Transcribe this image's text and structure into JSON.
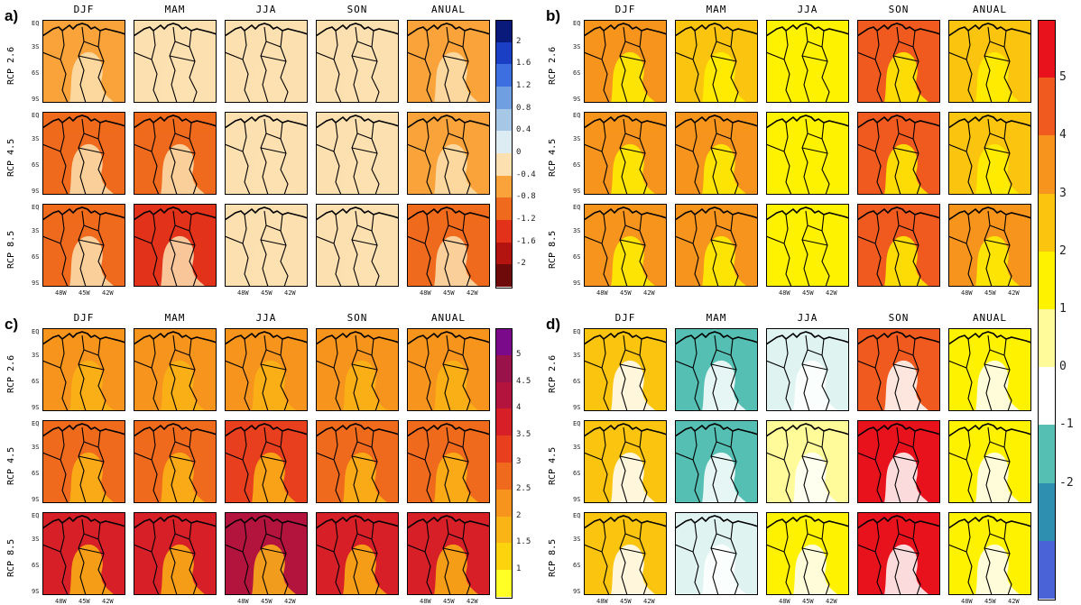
{
  "panels": [
    {
      "letter": "a)",
      "id": "a"
    },
    {
      "letter": "b)",
      "id": "b"
    },
    {
      "letter": "c)",
      "id": "c"
    },
    {
      "letter": "d)",
      "id": "d"
    }
  ],
  "seasons": [
    "DJF",
    "MAM",
    "JJA",
    "SON",
    "ANUAL"
  ],
  "scenarios": [
    "RCP 2.6",
    "RCP 4.5",
    "RCP 8.5"
  ],
  "y_ticks": [
    "EQ",
    "3S",
    "6S",
    "9S"
  ],
  "x_ticks": [
    "48W",
    "45W",
    "42W"
  ],
  "colorbars": {
    "a": {
      "labels": [
        "2",
        "1.6",
        "1.2",
        "0.8",
        "0.4",
        "0",
        "-0.4",
        "-0.8",
        "-1.2",
        "-1.6",
        "-2"
      ],
      "colors": [
        "#0a1a7a",
        "#1b3fc4",
        "#3e6fe0",
        "#6f9fe0",
        "#a7c7e6",
        "#dcecf2",
        "#fde0b0",
        "#f9a33a",
        "#f06a1d",
        "#e2321a",
        "#b3140f",
        "#6e0a0a"
      ]
    },
    "b": {
      "labels": [
        "5",
        "4",
        "3",
        "2",
        "1",
        "0",
        "-1",
        "-2"
      ],
      "colors": [
        "#e8121c",
        "#f05a1e",
        "#f7941d",
        "#fbc40f",
        "#fff200",
        "#fffb9a",
        "#ffffff",
        "#56bfb3",
        "#2e8fb0",
        "#4a63d6"
      ]
    },
    "c": {
      "labels": [
        "5",
        "4.5",
        "4",
        "3.5",
        "3",
        "2.5",
        "2",
        "1.5",
        "1"
      ],
      "colors": [
        "#7a0a8a",
        "#99124a",
        "#b3143d",
        "#d61f27",
        "#e8401e",
        "#f06a1d",
        "#f7941d",
        "#fbb416",
        "#fdd30e",
        "#ffff26"
      ]
    }
  },
  "chart_data": [
    {
      "type": "heatmap",
      "panel": "a",
      "rows": [
        "RCP 2.6",
        "RCP 4.5",
        "RCP 8.5"
      ],
      "columns": [
        "DJF",
        "MAM",
        "JJA",
        "SON",
        "ANUAL"
      ],
      "colorbar_range": [
        -2,
        2
      ]
    },
    {
      "type": "heatmap",
      "panel": "b",
      "rows": [
        "RCP 2.6",
        "RCP 4.5",
        "RCP 8.5"
      ],
      "columns": [
        "DJF",
        "MAM",
        "JJA",
        "SON",
        "ANUAL"
      ],
      "colorbar_range": [
        -2,
        5
      ]
    },
    {
      "type": "heatmap",
      "panel": "c",
      "rows": [
        "RCP 2.6",
        "RCP 4.5",
        "RCP 8.5"
      ],
      "columns": [
        "DJF",
        "MAM",
        "JJA",
        "SON",
        "ANUAL"
      ],
      "colorbar_range": [
        1,
        5
      ]
    },
    {
      "type": "heatmap",
      "panel": "d",
      "rows": [
        "RCP 2.6",
        "RCP 4.5",
        "RCP 8.5"
      ],
      "columns": [
        "DJF",
        "MAM",
        "JJA",
        "SON",
        "ANUAL"
      ],
      "colorbar_range": [
        -2,
        5
      ]
    }
  ]
}
